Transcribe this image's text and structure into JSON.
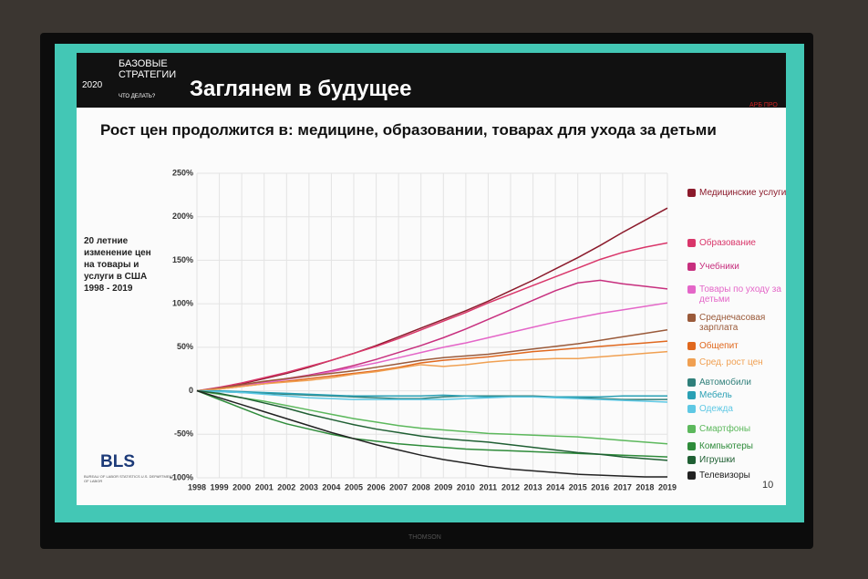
{
  "slide": {
    "header": "Заглянем в будущее",
    "logo_main": "БАЗОВЫЕ СТРАТЕГИИ",
    "logo_year": "2020",
    "logo_sub": "ЧТО ДЕЛАТЬ?",
    "org": "АРБ ПРО",
    "source": "BLS",
    "source_sub": "BUREAU OF LABOR STATISTICS U.S. DEPARTMENT OF LABOR",
    "page": "10",
    "brand": "THOMSON"
  },
  "chart_data": {
    "type": "line",
    "title": "Рост цен продолжится в: медицине, образовании, товарах для ухода за детьми",
    "annotation": "20 летние изменение цен на товары и услуги в США 1998 - 2019",
    "categories": [
      "1998",
      "1999",
      "2000",
      "2001",
      "2002",
      "2003",
      "2004",
      "2005",
      "2006",
      "2007",
      "2008",
      "2009",
      "2010",
      "2011",
      "2012",
      "2013",
      "2014",
      "2015",
      "2016",
      "2017",
      "2018",
      "2019"
    ],
    "ylim": [
      -100,
      250
    ],
    "yticks": [
      {
        "value": -100,
        "label": "-100%"
      },
      {
        "value": -50,
        "label": "-50%"
      },
      0,
      {
        "value": 50,
        "label": "50%"
      },
      {
        "value": 100,
        "label": "100%"
      },
      {
        "value": 150,
        "label": "150%"
      },
      {
        "value": 200,
        "label": "200%"
      },
      {
        "value": 250,
        "label": "250%"
      }
    ],
    "grid": true,
    "series": [
      {
        "name": "Медицинские услуги",
        "color": "#8b1a2b",
        "values": [
          0,
          3,
          8,
          14,
          20,
          27,
          35,
          43,
          52,
          62,
          72,
          82,
          92,
          103,
          115,
          127,
          140,
          153,
          167,
          182,
          196,
          210
        ]
      },
      {
        "name": "Образование",
        "color": "#d9366a",
        "values": [
          0,
          4,
          9,
          15,
          21,
          28,
          35,
          43,
          51,
          60,
          70,
          80,
          90,
          101,
          111,
          121,
          131,
          141,
          151,
          159,
          165,
          170
        ]
      },
      {
        "name": "Учебники",
        "color": "#c72f7e",
        "values": [
          0,
          3,
          6,
          10,
          14,
          18,
          23,
          29,
          36,
          44,
          52,
          61,
          71,
          82,
          93,
          104,
          115,
          124,
          127,
          123,
          120,
          117
        ]
      },
      {
        "name": "Товары по уходу за детьми",
        "color": "#e466c8",
        "values": [
          0,
          3,
          6,
          9,
          13,
          17,
          22,
          27,
          32,
          38,
          44,
          50,
          55,
          61,
          67,
          73,
          79,
          84,
          89,
          93,
          97,
          101
        ]
      },
      {
        "name": "Среднечасовая зарплата",
        "color": "#9a5a3a",
        "values": [
          0,
          3,
          7,
          11,
          14,
          17,
          20,
          23,
          27,
          31,
          35,
          38,
          40,
          42,
          45,
          48,
          51,
          54,
          58,
          62,
          66,
          70
        ]
      },
      {
        "name": "Общепит",
        "color": "#e0681e",
        "values": [
          0,
          2,
          5,
          8,
          11,
          14,
          17,
          20,
          23,
          27,
          32,
          35,
          37,
          39,
          42,
          45,
          47,
          49,
          51,
          53,
          55,
          57
        ]
      },
      {
        "name": "Сред. рост цен",
        "color": "#f0a052",
        "values": [
          0,
          2,
          5,
          8,
          10,
          12,
          15,
          19,
          22,
          26,
          30,
          28,
          30,
          33,
          35,
          36,
          37,
          37,
          39,
          41,
          43,
          45
        ]
      },
      {
        "name": "Автомобили",
        "color": "#2f7f7a",
        "values": [
          0,
          -1,
          -2,
          -3,
          -4,
          -5,
          -6,
          -7,
          -8,
          -9,
          -9,
          -7,
          -6,
          -6,
          -6,
          -6,
          -7,
          -8,
          -9,
          -10,
          -10,
          -10
        ]
      },
      {
        "name": "Мебель",
        "color": "#2aa0b4",
        "values": [
          0,
          0,
          -1,
          -2,
          -3,
          -4,
          -5,
          -6,
          -6,
          -6,
          -6,
          -5,
          -6,
          -7,
          -7,
          -7,
          -7,
          -7,
          -7,
          -6,
          -6,
          -6
        ]
      },
      {
        "name": "Одежда",
        "color": "#5ec8e4",
        "values": [
          0,
          -1,
          -2,
          -4,
          -6,
          -8,
          -9,
          -10,
          -10,
          -10,
          -10,
          -10,
          -9,
          -8,
          -7,
          -7,
          -8,
          -9,
          -10,
          -11,
          -12,
          -13
        ]
      },
      {
        "name": "Смартфоны",
        "color": "#5cb85c",
        "values": [
          0,
          -4,
          -8,
          -12,
          -17,
          -22,
          -27,
          -32,
          -36,
          -40,
          -43,
          -45,
          -47,
          -49,
          -50,
          -51,
          -52,
          -53,
          -55,
          -57,
          -59,
          -61
        ]
      },
      {
        "name": "Компьютеры",
        "color": "#2e8b3a",
        "values": [
          0,
          -10,
          -20,
          -30,
          -38,
          -44,
          -50,
          -55,
          -58,
          -61,
          -63,
          -65,
          -67,
          -68,
          -69,
          -70,
          -71,
          -72,
          -73,
          -74,
          -75,
          -76
        ]
      },
      {
        "name": "Игрушки",
        "color": "#1f5f33",
        "values": [
          0,
          -3,
          -8,
          -14,
          -20,
          -27,
          -33,
          -39,
          -44,
          -48,
          -52,
          -55,
          -57,
          -59,
          -62,
          -65,
          -68,
          -71,
          -73,
          -76,
          -78,
          -80
        ]
      },
      {
        "name": "Телевизоры",
        "color": "#222222",
        "values": [
          0,
          -8,
          -16,
          -24,
          -32,
          -40,
          -48,
          -55,
          -62,
          -68,
          -74,
          -79,
          -83,
          -87,
          -90,
          -92,
          -94,
          -96,
          -97,
          -98,
          -99,
          -99
        ]
      }
    ]
  }
}
